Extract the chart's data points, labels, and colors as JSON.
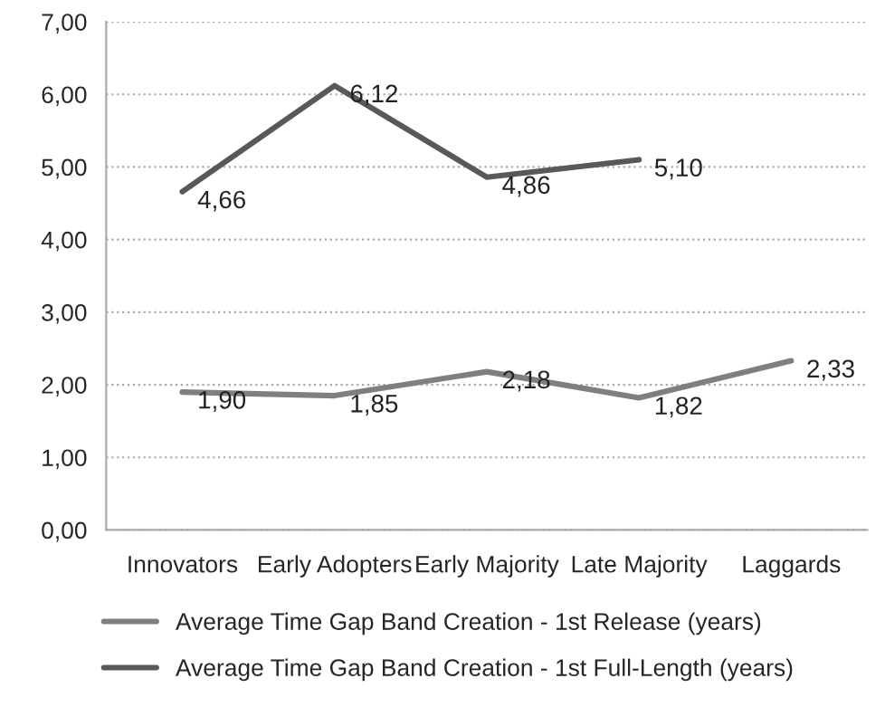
{
  "chart_data": {
    "type": "line",
    "categories": [
      "Innovators",
      "Early Adopters",
      "Early Majority",
      "Late Majority",
      "Laggards"
    ],
    "series": [
      {
        "name": "Average Time Gap Band Creation - 1st Release (years)",
        "color": "#7f7f7f",
        "values": [
          1.9,
          1.85,
          2.18,
          1.82,
          2.33
        ],
        "value_labels": [
          "1,90",
          "1,85",
          "2,18",
          "1,82",
          "2,33"
        ]
      },
      {
        "name": "Average Time Gap Band Creation - 1st Full-Length (years)",
        "color": "#595959",
        "values": [
          4.66,
          6.12,
          4.86,
          5.1,
          null
        ],
        "value_labels": [
          "4,66",
          "6,12",
          "4,86",
          "5,10",
          null
        ]
      }
    ],
    "ylim": [
      0,
      7
    ],
    "yticks": [
      {
        "value": 0,
        "label": "0,00"
      },
      {
        "value": 1,
        "label": "1,00"
      },
      {
        "value": 2,
        "label": "2,00"
      },
      {
        "value": 3,
        "label": "3,00"
      },
      {
        "value": 4,
        "label": "4,00"
      },
      {
        "value": 5,
        "label": "5,00"
      },
      {
        "value": 6,
        "label": "6,00"
      },
      {
        "value": 7,
        "label": "7,00"
      }
    ],
    "grid": "y",
    "legend": "bottom",
    "marker": "none",
    "line_style": "solid"
  }
}
